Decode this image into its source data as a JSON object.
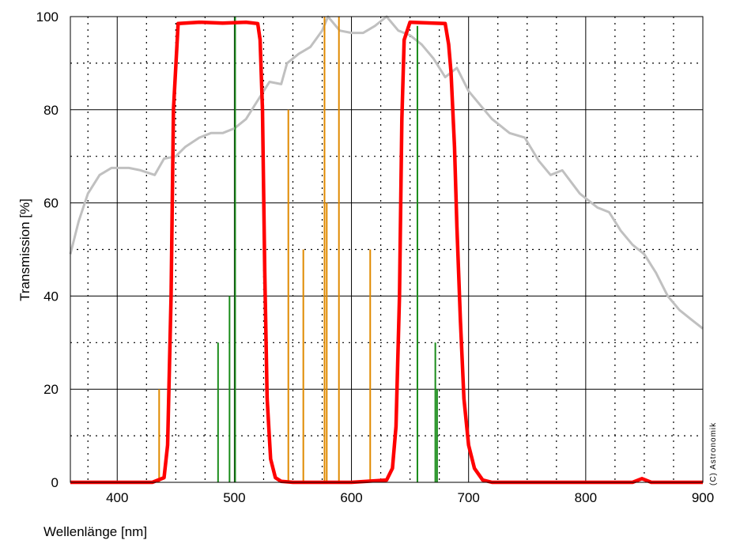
{
  "chart_data": {
    "type": "line",
    "xlabel": "Wellenlänge [nm]",
    "ylabel": "Transmission [%]",
    "xlim": [
      360,
      900
    ],
    "ylim": [
      0,
      100
    ],
    "x_ticks": [
      400,
      500,
      600,
      700,
      800,
      900
    ],
    "y_ticks": [
      0,
      20,
      40,
      60,
      80,
      100
    ],
    "grid": "major solid, minor dotted",
    "annotation": "(C) Astronomik",
    "colors": {
      "filter": "#ff0000",
      "sensor": "#c0c0c0",
      "orange_lines": "#e08a00",
      "green_lines": "#1a8c1a",
      "grid_major": "#000000",
      "grid_minor": "#000000"
    },
    "series": [
      {
        "role": "filter",
        "x": [
          360,
          430,
          440,
          443,
          446,
          448,
          452,
          470,
          490,
          510,
          520,
          522,
          524,
          526,
          528,
          531,
          535,
          540,
          550,
          600,
          630,
          635,
          638,
          641,
          643,
          645,
          650,
          670,
          680,
          683,
          685,
          688,
          690,
          693,
          696,
          700,
          705,
          712,
          720,
          800,
          840,
          848,
          856,
          900
        ],
        "y": [
          0,
          0,
          1,
          8,
          40,
          80,
          98.5,
          98.8,
          98.6,
          98.8,
          98.5,
          95,
          80,
          45,
          18,
          5,
          1,
          0.2,
          0,
          0,
          0.5,
          3,
          12,
          40,
          78,
          95,
          98.8,
          98.6,
          98.5,
          94,
          88,
          72,
          55,
          35,
          18,
          8,
          3,
          0.5,
          0,
          0,
          0,
          0.8,
          0,
          0
        ]
      },
      {
        "role": "sensor",
        "x": [
          360,
          367,
          375,
          385,
          395,
          410,
          420,
          432,
          440,
          450,
          458,
          470,
          480,
          490,
          500,
          510,
          520,
          530,
          540,
          545,
          555,
          565,
          575,
          580,
          590,
          600,
          610,
          620,
          630,
          640,
          650,
          660,
          670,
          680,
          690,
          700,
          710,
          720,
          735,
          748,
          760,
          770,
          780,
          795,
          810,
          820,
          830,
          840,
          850,
          860,
          870,
          880,
          890,
          900
        ],
        "y": [
          49,
          56,
          62,
          66,
          67.5,
          67.5,
          67,
          66,
          69.5,
          70,
          72,
          74,
          75,
          75,
          76,
          78,
          82,
          86,
          85.5,
          90,
          92,
          93.5,
          97,
          100,
          97,
          96.5,
          96.5,
          98,
          100,
          97,
          96,
          94,
          91,
          87,
          89,
          84,
          81,
          78,
          75,
          74,
          69,
          66,
          67,
          62,
          59,
          58,
          54,
          51,
          49,
          45,
          40,
          37,
          35,
          33
        ]
      }
    ],
    "emission_lines": [
      {
        "x": 435.8,
        "y": 20,
        "color": "orange"
      },
      {
        "x": 486.1,
        "y": 30,
        "color": "green"
      },
      {
        "x": 495.9,
        "y": 40,
        "color": "green"
      },
      {
        "x": 500.7,
        "y": 100,
        "color": "green"
      },
      {
        "x": 546.1,
        "y": 80,
        "color": "orange"
      },
      {
        "x": 558.9,
        "y": 50,
        "color": "orange"
      },
      {
        "x": 577,
        "y": 100,
        "color": "orange"
      },
      {
        "x": 578.9,
        "y": 60,
        "color": "orange"
      },
      {
        "x": 589.3,
        "y": 100,
        "color": "orange"
      },
      {
        "x": 616,
        "y": 50,
        "color": "orange"
      },
      {
        "x": 656.3,
        "y": 98,
        "color": "green"
      },
      {
        "x": 671.6,
        "y": 30,
        "color": "green"
      },
      {
        "x": 673.1,
        "y": 20,
        "color": "green"
      }
    ]
  }
}
